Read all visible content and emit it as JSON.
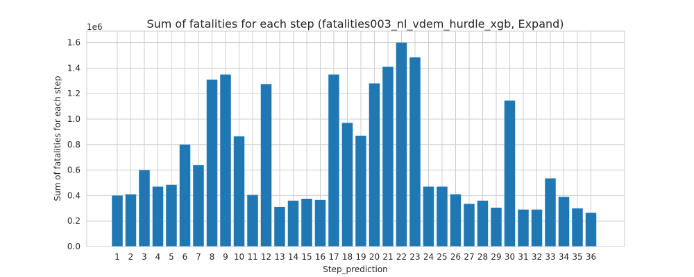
{
  "chart_data": {
    "type": "bar",
    "title": "Sum of fatalities for each step (fatalities003_nl_vdem_hurdle_xgb, Expand)",
    "xlabel": "Step_prediction",
    "ylabel": "Sum of fatalities for each step",
    "y_scale_label": "1e6",
    "ylim": [
      0,
      1.69
    ],
    "yticks": [
      0.0,
      0.2,
      0.4,
      0.6,
      0.8,
      1.0,
      1.2,
      1.4,
      1.6
    ],
    "ytick_labels": [
      "0.0",
      "0.2",
      "0.4",
      "0.6",
      "0.8",
      "1.0",
      "1.2",
      "1.4",
      "1.6"
    ],
    "grid": true,
    "colors": {
      "bar": "#1f77b4",
      "grid": "#cccccc"
    },
    "categories": [
      "1",
      "2",
      "3",
      "4",
      "5",
      "6",
      "7",
      "8",
      "9",
      "10",
      "11",
      "12",
      "13",
      "14",
      "15",
      "16",
      "17",
      "18",
      "19",
      "20",
      "21",
      "22",
      "23",
      "24",
      "25",
      "26",
      "27",
      "28",
      "29",
      "30",
      "31",
      "32",
      "33",
      "34",
      "35",
      "36"
    ],
    "values": [
      0.4,
      0.41,
      0.6,
      0.47,
      0.485,
      0.8,
      0.64,
      1.31,
      1.35,
      0.865,
      0.405,
      1.275,
      0.31,
      0.36,
      0.375,
      0.365,
      1.35,
      0.97,
      0.87,
      1.28,
      1.41,
      1.6,
      1.485,
      0.47,
      0.47,
      0.41,
      0.335,
      0.36,
      0.305,
      1.145,
      0.29,
      0.29,
      0.535,
      0.39,
      0.3,
      0.265
    ]
  }
}
